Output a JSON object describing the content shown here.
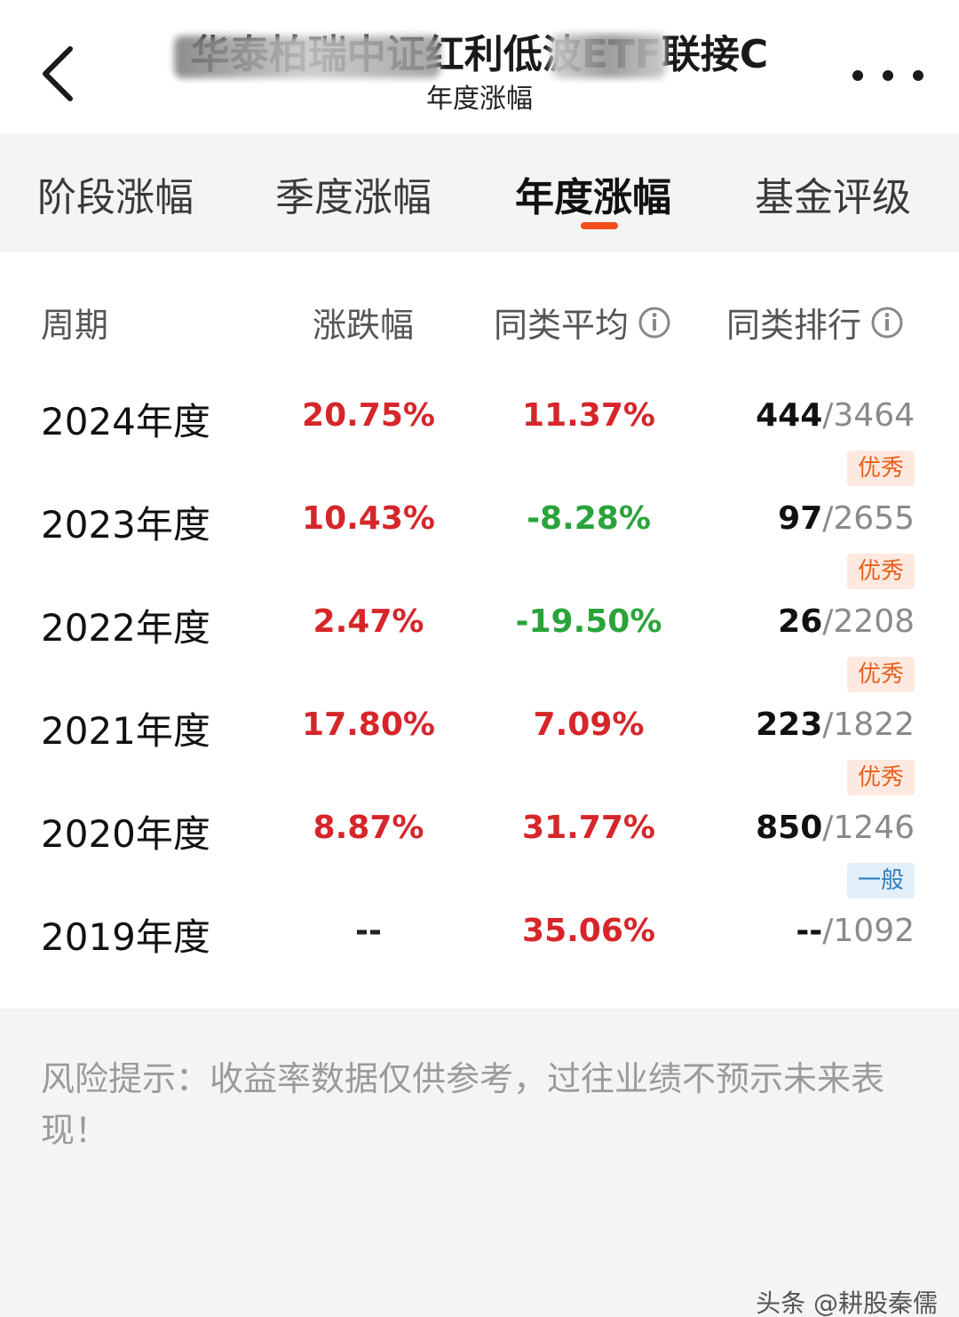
{
  "header": {
    "title": "华泰柏瑞中证红利低波ETF联接C",
    "subtitle": "年度涨幅"
  },
  "tabs": [
    {
      "label": "阶段涨幅",
      "active": false
    },
    {
      "label": "季度涨幅",
      "active": false
    },
    {
      "label": "年度涨幅",
      "active": true
    },
    {
      "label": "基金评级",
      "active": false
    }
  ],
  "table": {
    "headers": {
      "period": "周期",
      "change": "涨跌幅",
      "avg": "同类平均",
      "rank": "同类排行"
    },
    "rows": [
      {
        "period": "2024年度",
        "change": "20.75%",
        "avg": "11.37%",
        "rank": "444",
        "total": "/3464",
        "badge": "优秀"
      },
      {
        "period": "2023年度",
        "change": "10.43%",
        "avg": "-8.28%",
        "rank": "97",
        "total": "/2655",
        "badge": "优秀"
      },
      {
        "period": "2022年度",
        "change": "2.47%",
        "avg": "-19.50%",
        "rank": "26",
        "total": "/2208",
        "badge": "优秀"
      },
      {
        "period": "2021年度",
        "change": "17.80%",
        "avg": "7.09%",
        "rank": "223",
        "total": "/1822",
        "badge": "优秀"
      },
      {
        "period": "2020年度",
        "change": "8.87%",
        "avg": "31.77%",
        "rank": "850",
        "total": "/1246",
        "badge": "一般"
      },
      {
        "period": "2019年度",
        "change": "--",
        "avg": "35.06%",
        "rank": "--",
        "total": "/1092",
        "badge": ""
      }
    ]
  },
  "disclaimer": "风险提示：收益率数据仅供参考，过往业绩不预示未来表现！",
  "watermark": "头条 @耕股秦儒",
  "colors": {
    "positive": "#d6262a",
    "negative": "#2aa43a",
    "accent": "#f04f1c",
    "badge_good_bg": "#fde9df",
    "badge_good_text": "#e8601d",
    "badge_normal_bg": "#e2eff9",
    "badge_normal_text": "#2d7fc1"
  },
  "icons": {
    "back": "chevron-left-icon",
    "more": "more-dots-icon",
    "info": "info-icon"
  }
}
